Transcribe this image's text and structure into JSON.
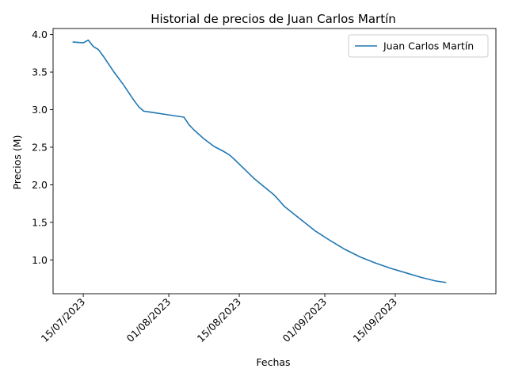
{
  "chart_data": {
    "type": "line",
    "title": "Historial de precios de Juan Carlos Martín",
    "xlabel": "Fechas",
    "ylabel": "Precios (M)",
    "x_tick_labels": [
      "15/07/2023",
      "01/08/2023",
      "15/08/2023",
      "01/09/2023",
      "15/09/2023"
    ],
    "x_ticks": [
      "2023-07-15",
      "2023-08-01",
      "2023-08-15",
      "2023-09-01",
      "2023-09-15"
    ],
    "y_ticks": [
      1.0,
      1.5,
      2.0,
      2.5,
      3.0,
      3.5,
      4.0
    ],
    "xlim": [
      "2023-07-09",
      "2023-10-05"
    ],
    "ylim": [
      0.55,
      4.08
    ],
    "legend_position": "top-right",
    "grid": false,
    "series": [
      {
        "name": "Juan Carlos Martín",
        "color": "#1f77b4",
        "x": [
          "2023-07-13",
          "2023-07-14",
          "2023-07-15",
          "2023-07-16",
          "2023-07-17",
          "2023-07-18",
          "2023-07-19",
          "2023-07-20",
          "2023-07-21",
          "2023-07-22",
          "2023-07-23",
          "2023-07-24",
          "2023-07-25",
          "2023-07-26",
          "2023-07-27",
          "2023-07-28",
          "2023-08-01",
          "2023-08-04",
          "2023-08-05",
          "2023-08-06",
          "2023-08-08",
          "2023-08-10",
          "2023-08-12",
          "2023-08-13",
          "2023-08-14",
          "2023-08-16",
          "2023-08-18",
          "2023-08-20",
          "2023-08-22",
          "2023-08-24",
          "2023-08-27",
          "2023-08-30",
          "2023-09-02",
          "2023-09-05",
          "2023-09-08",
          "2023-09-11",
          "2023-09-14",
          "2023-09-17",
          "2023-09-20",
          "2023-09-23",
          "2023-09-25"
        ],
        "y": [
          3.9,
          3.895,
          3.89,
          3.925,
          3.84,
          3.8,
          3.71,
          3.61,
          3.51,
          3.42,
          3.33,
          3.23,
          3.13,
          3.04,
          2.98,
          2.97,
          2.93,
          2.9,
          2.8,
          2.73,
          2.61,
          2.51,
          2.44,
          2.4,
          2.34,
          2.21,
          2.08,
          1.97,
          1.86,
          1.71,
          1.55,
          1.39,
          1.26,
          1.14,
          1.04,
          0.96,
          0.89,
          0.83,
          0.77,
          0.72,
          0.7
        ]
      }
    ]
  }
}
